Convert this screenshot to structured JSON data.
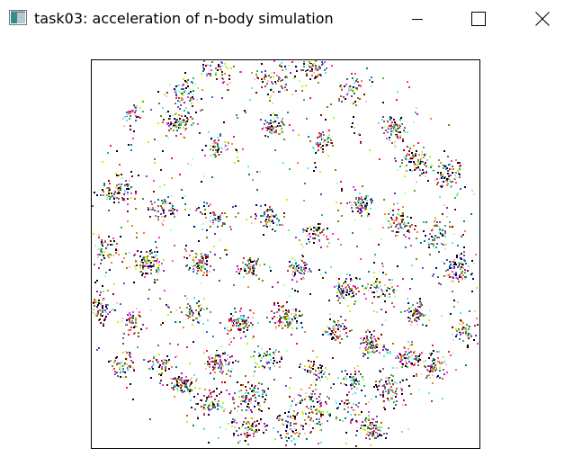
{
  "window": {
    "title": "task03: acceleration of n-body simulation",
    "icon": "app-window-icon",
    "controls": {
      "minimize_icon": "minimize-icon",
      "maximize_icon": "maximize-icon",
      "close_icon": "close-icon"
    }
  },
  "simulation": {
    "background_color": "#ffffff",
    "border_color": "#000000",
    "particle_colors": [
      "#e6194b",
      "#3cb44b",
      "#4363d8",
      "#f58231",
      "#911eb4",
      "#46f0f0",
      "#f032e6",
      "#bcf60c",
      "#008080",
      "#9a6324",
      "#800000",
      "#808000",
      "#000075",
      "#000000",
      "#aaffc3",
      "#fabebe"
    ]
  }
}
